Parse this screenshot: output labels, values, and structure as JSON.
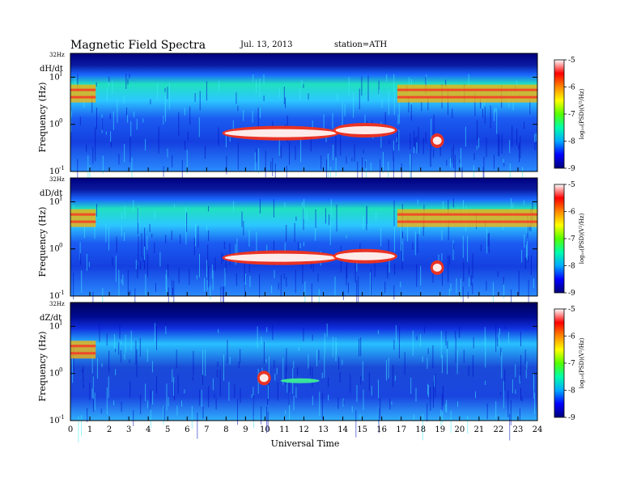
{
  "header": {
    "title": "Magnetic  Field  Spectra",
    "date": "Jul.  13, 2013",
    "station": "station=ATH"
  },
  "chart_data": {
    "type": "heatmap",
    "xlabel": "Universal Time",
    "ylabel": "Frequency  (Hz)",
    "x_ticks": [
      0,
      1,
      2,
      3,
      4,
      5,
      6,
      7,
      8,
      9,
      10,
      11,
      12,
      13,
      14,
      15,
      16,
      17,
      18,
      19,
      20,
      21,
      22,
      23,
      24
    ],
    "xlim": [
      0,
      24
    ],
    "y_scale": "log",
    "ylim": [
      0.1,
      32
    ],
    "y_tick_labels": [
      "10",
      "10",
      "10"
    ],
    "y_tick_exponents": [
      "1",
      "0",
      "-1"
    ],
    "y_top_label": "32Hz",
    "colorbar": {
      "ticks": [
        "-5",
        "-6",
        "-7",
        "-8",
        "-9"
      ],
      "label": "log₁₀(PSD)(V²/Hz)",
      "range": [
        -9,
        -5
      ],
      "colors": [
        "#00007a",
        "#0000ff",
        "#00aaff",
        "#00ffaa",
        "#55ff00",
        "#ffff00",
        "#ff8800",
        "#ff0000",
        "#ffffff"
      ]
    },
    "panels": [
      {
        "name": "dH/dt",
        "events": [
          {
            "t0": 7.8,
            "t1": 13.8,
            "f": 0.65,
            "kind": "burst"
          },
          {
            "t0": 13.5,
            "t1": 16.8,
            "f": 0.75,
            "kind": "burst"
          },
          {
            "t0": 18.5,
            "t1": 19.2,
            "f": 0.45,
            "kind": "burst"
          },
          {
            "t0": 0,
            "t1": 1.3,
            "f": 4.5,
            "kind": "band"
          },
          {
            "t0": 16.8,
            "t1": 24,
            "f": 4.5,
            "kind": "band"
          }
        ]
      },
      {
        "name": "dD/dt",
        "events": [
          {
            "t0": 7.8,
            "t1": 13.8,
            "f": 0.65,
            "kind": "burst"
          },
          {
            "t0": 13.5,
            "t1": 16.8,
            "f": 0.7,
            "kind": "burst"
          },
          {
            "t0": 18.5,
            "t1": 19.2,
            "f": 0.4,
            "kind": "burst"
          },
          {
            "t0": 0,
            "t1": 1.3,
            "f": 4.5,
            "kind": "band"
          },
          {
            "t0": 16.8,
            "t1": 24,
            "f": 4.5,
            "kind": "band"
          }
        ]
      },
      {
        "name": "dZ/dt",
        "events": [
          {
            "t0": 9.6,
            "t1": 10.3,
            "f": 0.8,
            "kind": "burst"
          },
          {
            "t0": 10.8,
            "t1": 12.8,
            "f": 0.7,
            "kind": "weak"
          },
          {
            "t0": 0,
            "t1": 1.3,
            "f": 3.2,
            "kind": "band"
          }
        ]
      }
    ]
  }
}
